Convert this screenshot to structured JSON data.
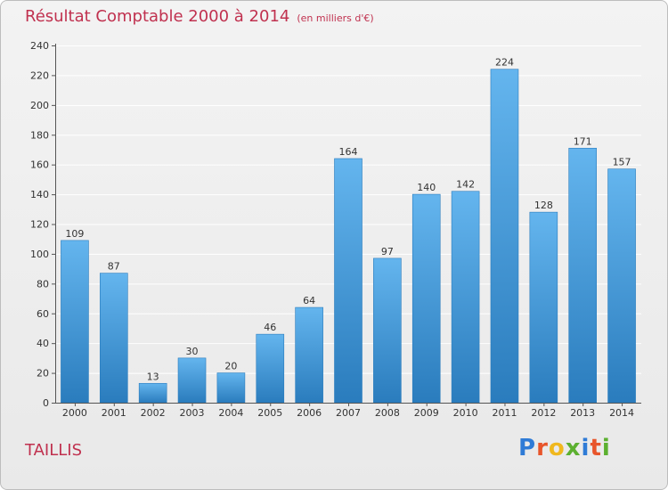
{
  "header": {
    "title": "Résultat Comptable 2000 à 2014",
    "subtitle": "(en milliers d'€)"
  },
  "footer": {
    "place": "TAILLIS",
    "logo": "Proxiti"
  },
  "colors": {
    "bar_light": "#64b5ee",
    "bar_dark": "#2a7cbd",
    "title": "#c0314f",
    "logo_letters": [
      "#2f7bd6",
      "#e8552b",
      "#f0b81e",
      "#5cb030",
      "#2f7bd6",
      "#e8552b",
      "#5cb030"
    ]
  },
  "chart_data": {
    "type": "bar",
    "categories": [
      "2000",
      "2001",
      "2002",
      "2003",
      "2004",
      "2005",
      "2006",
      "2007",
      "2008",
      "2009",
      "2010",
      "2011",
      "2012",
      "2013",
      "2014"
    ],
    "values": [
      109,
      87,
      13,
      30,
      20,
      46,
      64,
      164,
      97,
      140,
      142,
      224,
      128,
      171,
      157
    ],
    "ylim": [
      0,
      240
    ],
    "yticks": [
      0,
      20,
      40,
      60,
      80,
      100,
      120,
      140,
      160,
      180,
      200,
      220,
      240
    ],
    "grid": true,
    "data_labels": true
  }
}
